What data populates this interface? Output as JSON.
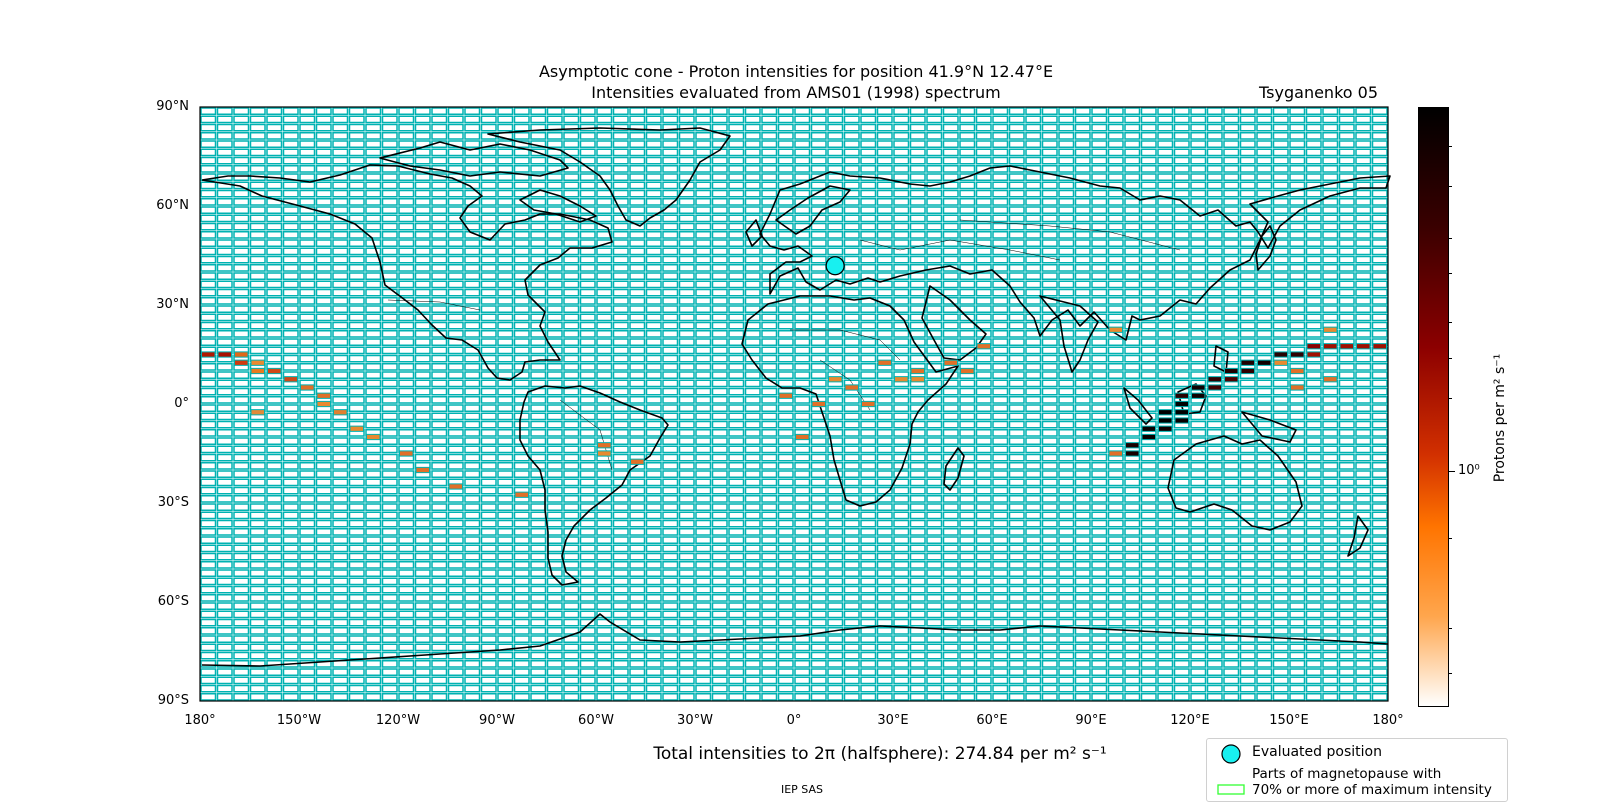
{
  "title_line1": "Asymptotic cone - Proton intensities for position 41.9°N 12.47°E",
  "title_line2": "Intensities evaluated from AMS01 (1998) spectrum",
  "model": "Tsyganenko 05",
  "lat_labels": [
    "90°N",
    "60°N",
    "30°N",
    "0°",
    "30°S",
    "60°S",
    "90°S"
  ],
  "lon_labels": [
    "180°",
    "150°W",
    "120°W",
    "90°W",
    "60°W",
    "30°W",
    "0°",
    "30°E",
    "60°E",
    "90°E",
    "120°E",
    "150°E",
    "180°"
  ],
  "total_text": "Total intensities to 2π (halfsphere): 274.84 per m² s⁻¹",
  "credit": "IEP SAS",
  "legend": {
    "evaluated": "Evaluated position",
    "magnetopause_line1": "Parts of magnetopause with",
    "magnetopause_line2": "70% or more of maximum intensity"
  },
  "colorbar": {
    "label": "Protons per m² s⁻¹",
    "tick": "10⁰",
    "colors": [
      "#000000",
      "#3a0000",
      "#8c0000",
      "#d23000",
      "#ff7400",
      "#ffa64d",
      "#ffffff"
    ]
  },
  "colors": {
    "grid": "#00b2b2",
    "marker": "#18f0f0",
    "legend_green": "#33ff33"
  },
  "evaluated_position": {
    "lat": 41.9,
    "lon": 12.47
  },
  "chart_data": {
    "type": "heatmap",
    "title": "Asymptotic cone - Proton intensities for position 41.9°N 12.47°E",
    "projection": "plate carree",
    "cell_size_deg": [
      5,
      2.5
    ],
    "lon_range": [
      -180,
      180
    ],
    "lat_range": [
      -90,
      90
    ],
    "cells": [
      {
        "lon": -177.5,
        "lat": 15,
        "c": "#b01800"
      },
      {
        "lon": -172.5,
        "lat": 15,
        "c": "#a81000"
      },
      {
        "lon": -167.5,
        "lat": 15,
        "c": "#e06818"
      },
      {
        "lon": -167.5,
        "lat": 12.5,
        "c": "#d03a10"
      },
      {
        "lon": -162.5,
        "lat": 12.5,
        "c": "#e88a30"
      },
      {
        "lon": -162.5,
        "lat": 10,
        "c": "#e87a20"
      },
      {
        "lon": -157.5,
        "lat": 10,
        "c": "#d04818"
      },
      {
        "lon": -152.5,
        "lat": 7.5,
        "c": "#d04818"
      },
      {
        "lon": -147.5,
        "lat": 5,
        "c": "#e07028"
      },
      {
        "lon": -142.5,
        "lat": 2.5,
        "c": "#e07028"
      },
      {
        "lon": -142.5,
        "lat": 0,
        "c": "#e88a30"
      },
      {
        "lon": -137.5,
        "lat": -2.5,
        "c": "#e08030"
      },
      {
        "lon": -162.5,
        "lat": -2.5,
        "c": "#e08a38"
      },
      {
        "lon": -132.5,
        "lat": -7.5,
        "c": "#e88a30"
      },
      {
        "lon": -127.5,
        "lat": -10,
        "c": "#e88a30"
      },
      {
        "lon": -117.5,
        "lat": -15,
        "c": "#e07028"
      },
      {
        "lon": -112.5,
        "lat": -20,
        "c": "#e07028"
      },
      {
        "lon": -102.5,
        "lat": -25,
        "c": "#e07028"
      },
      {
        "lon": -82.5,
        "lat": -27.5,
        "c": "#e07028"
      },
      {
        "lon": -57.5,
        "lat": -12.5,
        "c": "#e07028"
      },
      {
        "lon": -57.5,
        "lat": -15,
        "c": "#e88a30"
      },
      {
        "lon": -47.5,
        "lat": -17.5,
        "c": "#e07028"
      },
      {
        "lon": -2.5,
        "lat": 2.5,
        "c": "#e07028"
      },
      {
        "lon": 2.5,
        "lat": -10,
        "c": "#e07028"
      },
      {
        "lon": 7.5,
        "lat": 0,
        "c": "#e07028"
      },
      {
        "lon": 12.5,
        "lat": 7.5,
        "c": "#e88a30"
      },
      {
        "lon": 17.5,
        "lat": 5,
        "c": "#e07028"
      },
      {
        "lon": 22.5,
        "lat": 0,
        "c": "#e07028"
      },
      {
        "lon": 27.5,
        "lat": 12.5,
        "c": "#e07028"
      },
      {
        "lon": 32.5,
        "lat": 7.5,
        "c": "#e88a30"
      },
      {
        "lon": 37.5,
        "lat": 10,
        "c": "#e07028"
      },
      {
        "lon": 37.5,
        "lat": 7.5,
        "c": "#e88a30"
      },
      {
        "lon": 47.5,
        "lat": 12.5,
        "c": "#e07028"
      },
      {
        "lon": 52.5,
        "lat": 10,
        "c": "#e07028"
      },
      {
        "lon": 57.5,
        "lat": 17.5,
        "c": "#e07028"
      },
      {
        "lon": 97.5,
        "lat": 22.5,
        "c": "#e88a30"
      },
      {
        "lon": 97.5,
        "lat": -15,
        "c": "#e07028"
      },
      {
        "lon": 102.5,
        "lat": -12.5,
        "c": "#1a0000"
      },
      {
        "lon": 102.5,
        "lat": -15,
        "c": "#1a0000"
      },
      {
        "lon": 107.5,
        "lat": -7.5,
        "c": "#080000"
      },
      {
        "lon": 107.5,
        "lat": -10,
        "c": "#080000"
      },
      {
        "lon": 112.5,
        "lat": -2.5,
        "c": "#000000"
      },
      {
        "lon": 112.5,
        "lat": -5,
        "c": "#000000"
      },
      {
        "lon": 112.5,
        "lat": -7.5,
        "c": "#100000"
      },
      {
        "lon": 117.5,
        "lat": 2.5,
        "c": "#2a0000"
      },
      {
        "lon": 117.5,
        "lat": 0,
        "c": "#000000"
      },
      {
        "lon": 117.5,
        "lat": -2.5,
        "c": "#000000"
      },
      {
        "lon": 117.5,
        "lat": -5,
        "c": "#080000"
      },
      {
        "lon": 122.5,
        "lat": 5,
        "c": "#100000"
      },
      {
        "lon": 122.5,
        "lat": 2.5,
        "c": "#100000"
      },
      {
        "lon": 127.5,
        "lat": 7.5,
        "c": "#300000"
      },
      {
        "lon": 127.5,
        "lat": 5,
        "c": "#400000"
      },
      {
        "lon": 132.5,
        "lat": 10,
        "c": "#200000"
      },
      {
        "lon": 132.5,
        "lat": 7.5,
        "c": "#500000"
      },
      {
        "lon": 137.5,
        "lat": 12.5,
        "c": "#200000"
      },
      {
        "lon": 137.5,
        "lat": 10,
        "c": "#300000"
      },
      {
        "lon": 142.5,
        "lat": 12.5,
        "c": "#100000"
      },
      {
        "lon": 147.5,
        "lat": 15,
        "c": "#280000"
      },
      {
        "lon": 147.5,
        "lat": 12.5,
        "c": "#e88a30"
      },
      {
        "lon": 152.5,
        "lat": 15,
        "c": "#300000"
      },
      {
        "lon": 152.5,
        "lat": 10,
        "c": "#e07028"
      },
      {
        "lon": 152.5,
        "lat": 5,
        "c": "#e07028"
      },
      {
        "lon": 157.5,
        "lat": 17.5,
        "c": "#8c0000"
      },
      {
        "lon": 157.5,
        "lat": 15,
        "c": "#a01000"
      },
      {
        "lon": 162.5,
        "lat": 22.5,
        "c": "#e88a30"
      },
      {
        "lon": 162.5,
        "lat": 17.5,
        "c": "#a01000"
      },
      {
        "lon": 162.5,
        "lat": 7.5,
        "c": "#e07028"
      },
      {
        "lon": 167.5,
        "lat": 17.5,
        "c": "#a01000"
      },
      {
        "lon": 172.5,
        "lat": 17.5,
        "c": "#a01000"
      },
      {
        "lon": 177.5,
        "lat": 17.5,
        "c": "#a01000"
      },
      {
        "lon": 182.5,
        "lat": 15,
        "c": "#b01800"
      }
    ]
  }
}
